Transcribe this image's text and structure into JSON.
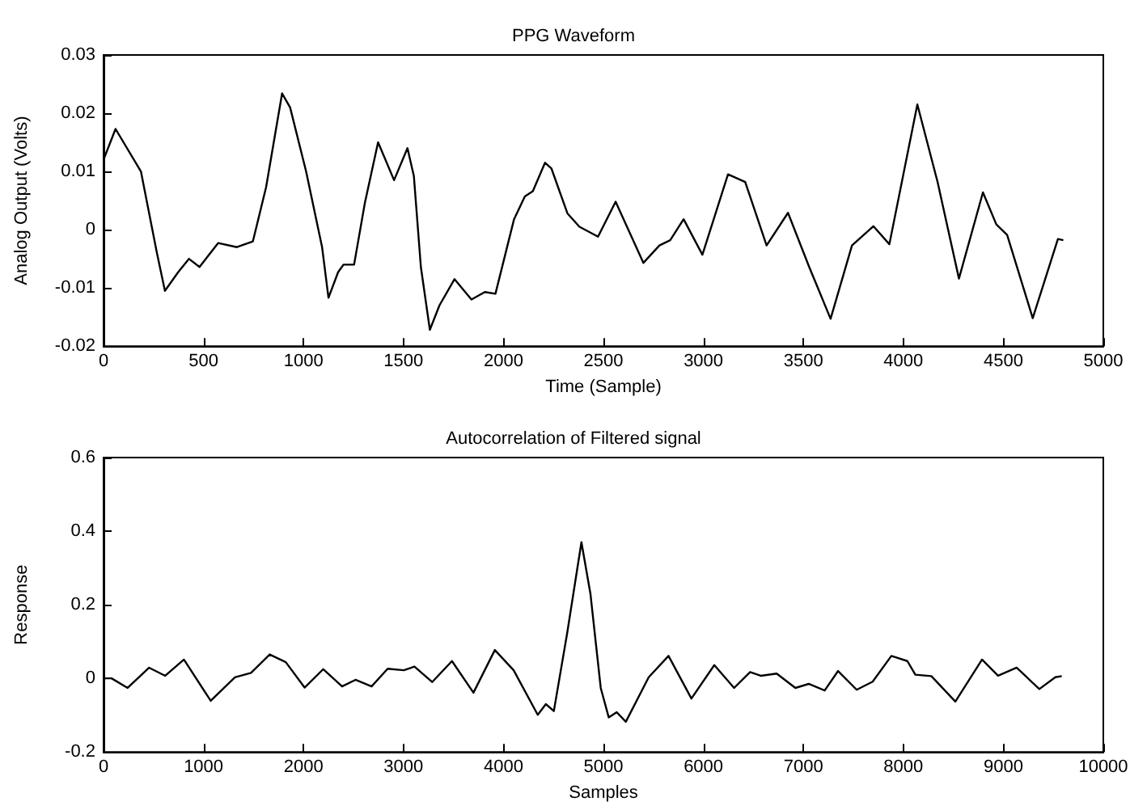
{
  "chart_data": [
    {
      "type": "line",
      "title": "PPG Waveform",
      "xlabel": "Time (Sample)",
      "ylabel": "Analog Output (Volts)",
      "color": "#000000",
      "marker": "none",
      "xlim": [
        0,
        5000
      ],
      "ylim": [
        -0.02,
        0.03
      ],
      "xticks": [
        0,
        500,
        1000,
        1500,
        2000,
        2500,
        3000,
        3500,
        4000,
        4500,
        5000
      ],
      "yticks": [
        -0.02,
        -0.01,
        0,
        0.01,
        0.02,
        0.03
      ],
      "x": [
        0,
        60,
        187,
        267,
        307,
        373,
        427,
        480,
        573,
        667,
        747,
        813,
        893,
        933,
        1013,
        1093,
        1125,
        1173,
        1200,
        1253,
        1307,
        1373,
        1453,
        1520,
        1552,
        1587,
        1632,
        1680,
        1755,
        1840,
        1907,
        1960,
        2053,
        2107,
        2147,
        2208,
        2240,
        2320,
        2380,
        2473,
        2561,
        2700,
        2780,
        2834,
        2901,
        2995,
        3123,
        3209,
        3316,
        3423,
        3529,
        3636,
        3743,
        3850,
        3930,
        4070,
        4171,
        4278,
        4398,
        4465,
        4519,
        4647,
        4773,
        4800
      ],
      "values": [
        0.012,
        0.0173,
        0.01,
        -0.004,
        -0.0105,
        -0.0073,
        -0.005,
        -0.0064,
        -0.0023,
        -0.003,
        -0.002,
        0.0073,
        0.0234,
        0.021,
        0.01,
        -0.003,
        -0.0117,
        -0.0073,
        -0.006,
        -0.006,
        0.0046,
        0.015,
        0.0085,
        0.014,
        0.0092,
        -0.0064,
        -0.0172,
        -0.013,
        -0.0085,
        -0.012,
        -0.0107,
        -0.011,
        0.0018,
        0.0057,
        0.0066,
        0.0115,
        0.0105,
        0.0028,
        0.0005,
        -0.0012,
        0.0048,
        -0.0057,
        -0.0027,
        -0.0018,
        0.0018,
        -0.0043,
        0.0095,
        0.0082,
        -0.0027,
        0.0029,
        -0.0064,
        -0.0153,
        -0.0027,
        0.0006,
        -0.0025,
        0.0215,
        0.0082,
        -0.0084,
        0.0064,
        0.0009,
        -0.0009,
        -0.0152,
        -0.0016,
        -0.0018
      ]
    },
    {
      "type": "line",
      "title": "Autocorrelation of Filtered signal",
      "xlabel": "Samples",
      "ylabel": "Response",
      "color": "#000000",
      "marker": "none",
      "xlim": [
        0,
        10000
      ],
      "ylim": [
        -0.2,
        0.6
      ],
      "xticks": [
        0,
        1000,
        2000,
        3000,
        4000,
        5000,
        6000,
        7000,
        8000,
        9000,
        10000
      ],
      "yticks": [
        -0.2,
        0,
        0.2,
        0.4,
        0.6
      ],
      "x": [
        0,
        80,
        241,
        456,
        617,
        804,
        1072,
        1314,
        1475,
        1662,
        1823,
        2011,
        2198,
        2386,
        2520,
        2681,
        2842,
        3003,
        3110,
        3287,
        3485,
        3700,
        3914,
        4102,
        4343,
        4424,
        4504,
        4638,
        4780,
        4870,
        4973,
        5053,
        5133,
        5224,
        5453,
        5651,
        5880,
        6109,
        6307,
        6467,
        6573,
        6733,
        6920,
        7053,
        7213,
        7347,
        7533,
        7693,
        7880,
        8040,
        8120,
        8280,
        8520,
        8787,
        8947,
        9133,
        9360,
        9520,
        9584
      ],
      "values": [
        0,
        0,
        -0.026,
        0.029,
        0.007,
        0.051,
        -0.061,
        0.003,
        0.015,
        0.065,
        0.044,
        -0.025,
        0.025,
        -0.022,
        -0.004,
        -0.022,
        0.026,
        0.022,
        0.032,
        -0.01,
        0.047,
        -0.039,
        0.077,
        0.022,
        -0.099,
        -0.07,
        -0.089,
        0.124,
        0.37,
        0.23,
        -0.026,
        -0.106,
        -0.092,
        -0.118,
        0.003,
        0.061,
        -0.055,
        0.036,
        -0.026,
        0.017,
        0.007,
        0.013,
        -0.026,
        -0.015,
        -0.033,
        0.02,
        -0.031,
        -0.009,
        0.061,
        0.047,
        0.01,
        0.006,
        -0.063,
        0.051,
        0.007,
        0.029,
        -0.029,
        0.003,
        0.006
      ]
    }
  ]
}
